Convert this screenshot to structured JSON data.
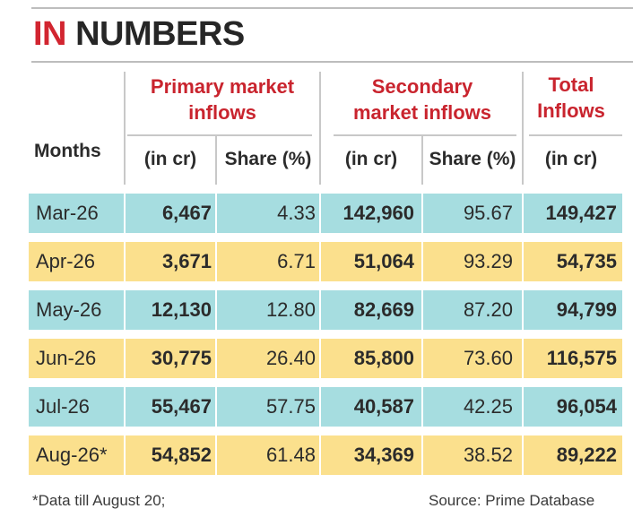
{
  "title": {
    "accent": "IN",
    "rest": "NUMBERS"
  },
  "headers": {
    "months": "Months",
    "primary": [
      "Primary market",
      "inflows"
    ],
    "secondary": [
      "Secondary",
      "market inflows"
    ],
    "total": [
      "Total",
      "Inflows"
    ],
    "sub": {
      "p_cr": "(in cr)",
      "p_share": "Share (%)",
      "s_cr": "(in cr)",
      "s_share": "Share (%)",
      "t_cr": "(in cr)"
    }
  },
  "rows": [
    {
      "month": "Mar-26",
      "primary": "6,467",
      "primary_share": "4.33",
      "secondary": "142,960",
      "secondary_share": "95.67",
      "total": "149,427"
    },
    {
      "month": "Apr-26",
      "primary": "3,671",
      "primary_share": "6.71",
      "secondary": "51,064",
      "secondary_share": "93.29",
      "total": "54,735"
    },
    {
      "month": "May-26",
      "primary": "12,130",
      "primary_share": "12.80",
      "secondary": "82,669",
      "secondary_share": "87.20",
      "total": "94,799"
    },
    {
      "month": "Jun-26",
      "primary": "30,775",
      "primary_share": "26.40",
      "secondary": "85,800",
      "secondary_share": "73.60",
      "total": "116,575"
    },
    {
      "month": "Jul-26",
      "primary": "55,467",
      "primary_share": "57.75",
      "secondary": "40,587",
      "secondary_share": "42.25",
      "total": "96,054"
    },
    {
      "month": "Aug-26*",
      "primary": "54,852",
      "primary_share": "61.48",
      "secondary": "34,369",
      "secondary_share": "38.52",
      "total": "89,222"
    }
  ],
  "row_colors": {
    "teal": "#a6dde0",
    "yellow": "#fbe08d",
    "accent": "#d22530"
  },
  "footer": {
    "note": "*Data till August 20;",
    "source": "Source: Prime Database"
  }
}
